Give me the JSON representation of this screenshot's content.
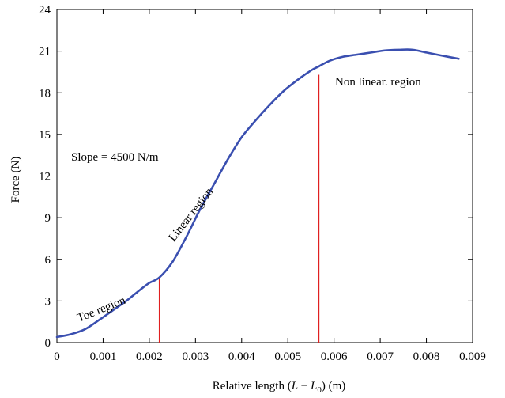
{
  "chart_data": {
    "type": "line",
    "xlabel_main": "Relative length (",
    "xlabel_L": "L",
    "xlabel_minus": " − ",
    "xlabel_L0": "L",
    "xlabel_sub": "0",
    "xlabel_units": ") (m)",
    "ylabel": "Force (N)",
    "xlim": [
      0,
      0.009
    ],
    "ylim": [
      0,
      24
    ],
    "x_ticks": [
      0,
      0.001,
      0.002,
      0.003,
      0.004,
      0.005,
      0.006,
      0.007,
      0.008,
      0.009
    ],
    "x_tick_labels": [
      "0",
      "0.001",
      "0.002",
      "0.003",
      "0.004",
      "0.005",
      "0.006",
      "0.007",
      "0.008",
      "0.009"
    ],
    "y_ticks": [
      0,
      3,
      6,
      9,
      12,
      15,
      18,
      21,
      24
    ],
    "y_tick_labels": [
      "0",
      "3",
      "6",
      "9",
      "12",
      "15",
      "18",
      "21",
      "24"
    ],
    "grid": false,
    "series": [
      {
        "color": "#3a4fb0",
        "x": [
          0,
          0.0003,
          0.0006,
          0.0009,
          0.0012,
          0.0015,
          0.0018,
          0.002,
          0.00222,
          0.0025,
          0.0028,
          0.0031,
          0.0034,
          0.0037,
          0.004,
          0.0043,
          0.0046,
          0.0049,
          0.0052,
          0.0055,
          0.00567,
          0.0059,
          0.0062,
          0.0065,
          0.0068,
          0.0071,
          0.0074,
          0.0077,
          0.008,
          0.0083,
          0.0087
        ],
        "y": [
          0.4,
          0.6,
          0.95,
          1.6,
          2.3,
          3.0,
          3.8,
          4.3,
          4.7,
          5.8,
          7.6,
          9.6,
          11.4,
          13.2,
          14.8,
          16.0,
          17.1,
          18.1,
          18.9,
          19.6,
          19.9,
          20.3,
          20.6,
          20.75,
          20.9,
          21.05,
          21.1,
          21.1,
          20.9,
          20.7,
          20.45
        ]
      }
    ],
    "markers": [
      {
        "x": 0.00222,
        "y_top": 4.6,
        "color": "#e02020"
      },
      {
        "x": 0.00567,
        "y_top": 19.3,
        "color": "#e02020"
      }
    ],
    "annotations": {
      "toe": "Toe region",
      "linear": "Linear region",
      "nonlinear": "Non linear. region",
      "slope": "Slope = 4500 N/m"
    }
  }
}
